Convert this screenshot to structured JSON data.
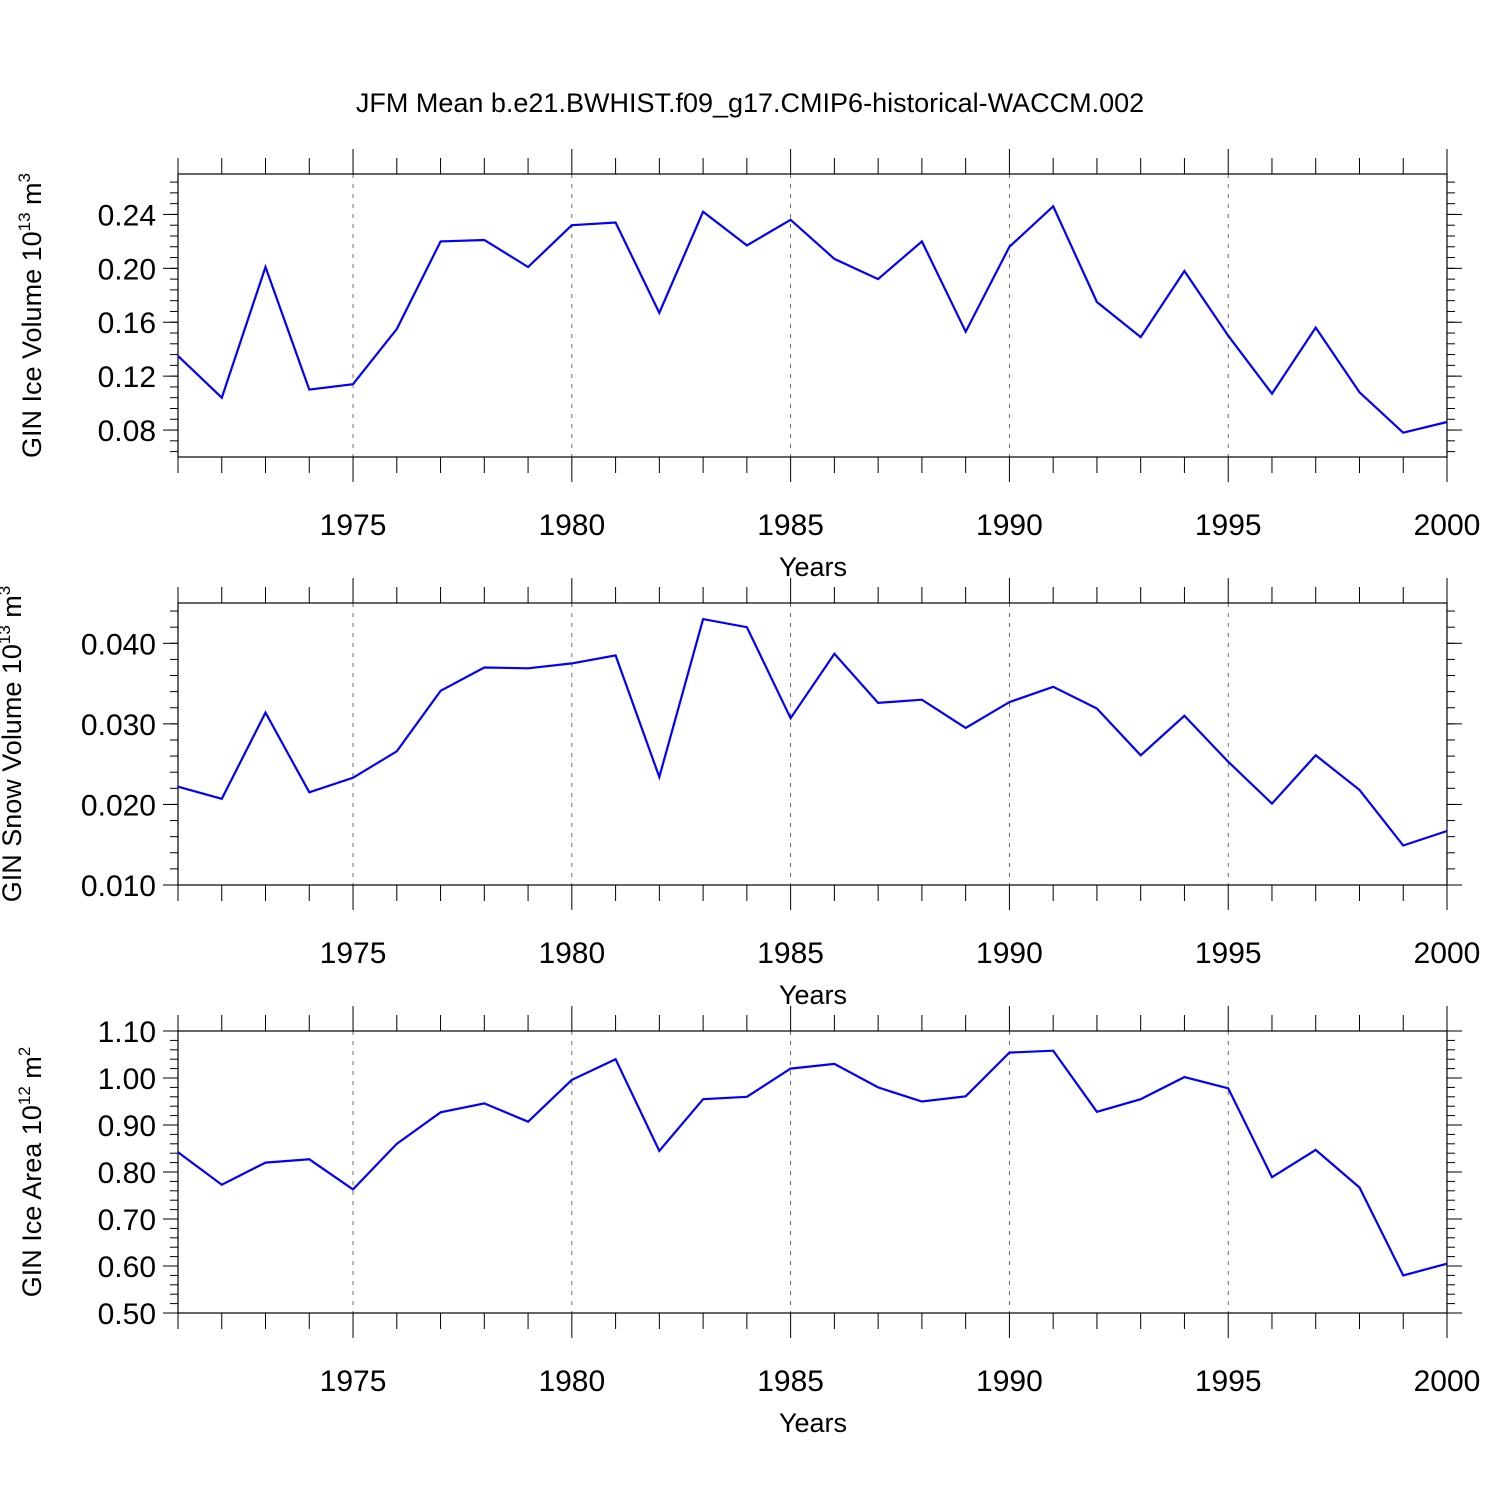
{
  "chart_data": {
    "type": "line",
    "title": "JFM Mean b.e21.BWHIST.f09_g17.CMIP6-historical-WACCM.002",
    "panels": [
      {
        "id": "ice-volume",
        "ylabel": "GIN Ice Volume 10",
        "ylabel_exp": "13",
        "ylabel_unit": " m",
        "ylabel_unit_exp": "3",
        "xlabel": "Years",
        "xlim": [
          1971,
          2000
        ],
        "ylim": [
          0.06,
          0.27
        ],
        "x_major_ticks": [
          1975,
          1980,
          1985,
          1990,
          1995,
          2000
        ],
        "x_tick_labels": [
          "1975",
          "1980",
          "1985",
          "1990",
          "1995",
          "2000"
        ],
        "y_major_ticks": [
          0.08,
          0.12,
          0.16,
          0.2,
          0.24
        ],
        "y_tick_labels": [
          "0.08",
          "0.12",
          "0.16",
          "0.20",
          "0.24"
        ],
        "y_minor_step": 0.008,
        "series": [
          {
            "name": "GIN Ice Volume",
            "color": "#0000ff",
            "x": [
              1971,
              1972,
              1973,
              1974,
              1975,
              1976,
              1977,
              1978,
              1979,
              1980,
              1981,
              1982,
              1983,
              1984,
              1985,
              1986,
              1987,
              1988,
              1989,
              1990,
              1991,
              1992,
              1993,
              1994,
              1995,
              1996,
              1997,
              1998,
              1999,
              2000
            ],
            "values": [
              0.135,
              0.104,
              0.201,
              0.11,
              0.114,
              0.155,
              0.22,
              0.221,
              0.201,
              0.232,
              0.234,
              0.167,
              0.242,
              0.217,
              0.236,
              0.207,
              0.192,
              0.22,
              0.153,
              0.216,
              0.246,
              0.175,
              0.149,
              0.198,
              0.15,
              0.107,
              0.156,
              0.108,
              0.078,
              0.086
            ]
          }
        ]
      },
      {
        "id": "snow-volume",
        "ylabel": "GIN Snow Volume 10",
        "ylabel_exp": "13",
        "ylabel_unit": " m",
        "ylabel_unit_exp": "3",
        "xlabel": "Years",
        "xlim": [
          1971,
          2000
        ],
        "ylim": [
          0.01,
          0.045
        ],
        "x_major_ticks": [
          1975,
          1980,
          1985,
          1990,
          1995,
          2000
        ],
        "x_tick_labels": [
          "1975",
          "1980",
          "1985",
          "1990",
          "1995",
          "2000"
        ],
        "y_major_ticks": [
          0.01,
          0.02,
          0.03,
          0.04
        ],
        "y_tick_labels": [
          "0.010",
          "0.020",
          "0.030",
          "0.040"
        ],
        "y_minor_step": 0.002,
        "series": [
          {
            "name": "GIN Snow Volume",
            "color": "#0000ff",
            "x": [
              1971,
              1972,
              1973,
              1974,
              1975,
              1976,
              1977,
              1978,
              1979,
              1980,
              1981,
              1982,
              1983,
              1984,
              1985,
              1986,
              1987,
              1988,
              1989,
              1990,
              1991,
              1992,
              1993,
              1994,
              1995,
              1996,
              1997,
              1998,
              1999,
              2000
            ],
            "values": [
              0.0222,
              0.0207,
              0.0314,
              0.0215,
              0.0233,
              0.0266,
              0.0341,
              0.037,
              0.0369,
              0.0375,
              0.0385,
              0.0234,
              0.043,
              0.042,
              0.0307,
              0.0387,
              0.0326,
              0.033,
              0.0295,
              0.0327,
              0.0346,
              0.0319,
              0.0261,
              0.031,
              0.0253,
              0.0201,
              0.0261,
              0.0218,
              0.0149,
              0.0167
            ]
          }
        ]
      },
      {
        "id": "ice-area",
        "ylabel": "GIN Ice Area 10",
        "ylabel_exp": "12",
        "ylabel_unit": " m",
        "ylabel_unit_exp": "2",
        "xlabel": "Years",
        "xlim": [
          1971,
          2000
        ],
        "ylim": [
          0.5,
          1.1
        ],
        "x_major_ticks": [
          1975,
          1980,
          1985,
          1990,
          1995,
          2000
        ],
        "x_tick_labels": [
          "1975",
          "1980",
          "1985",
          "1990",
          "1995",
          "2000"
        ],
        "y_major_ticks": [
          0.5,
          0.6,
          0.7,
          0.8,
          0.9,
          1.0,
          1.1
        ],
        "y_tick_labels": [
          "0.50",
          "0.60",
          "0.70",
          "0.80",
          "0.90",
          "1.00",
          "1.10"
        ],
        "y_minor_step": 0.02,
        "series": [
          {
            "name": "GIN Ice Area",
            "color": "#0000ff",
            "x": [
              1971,
              1972,
              1973,
              1974,
              1975,
              1976,
              1977,
              1978,
              1979,
              1980,
              1981,
              1982,
              1983,
              1984,
              1985,
              1986,
              1987,
              1988,
              1989,
              1990,
              1991,
              1992,
              1993,
              1994,
              1995,
              1996,
              1997,
              1998,
              1999,
              2000
            ],
            "values": [
              0.842,
              0.773,
              0.82,
              0.827,
              0.763,
              0.86,
              0.927,
              0.946,
              0.907,
              0.996,
              1.04,
              0.845,
              0.955,
              0.96,
              1.02,
              1.03,
              0.98,
              0.95,
              0.961,
              1.054,
              1.058,
              0.928,
              0.955,
              1.002,
              0.978,
              0.789,
              0.847,
              0.767,
              0.58,
              0.605
            ]
          }
        ]
      }
    ]
  }
}
